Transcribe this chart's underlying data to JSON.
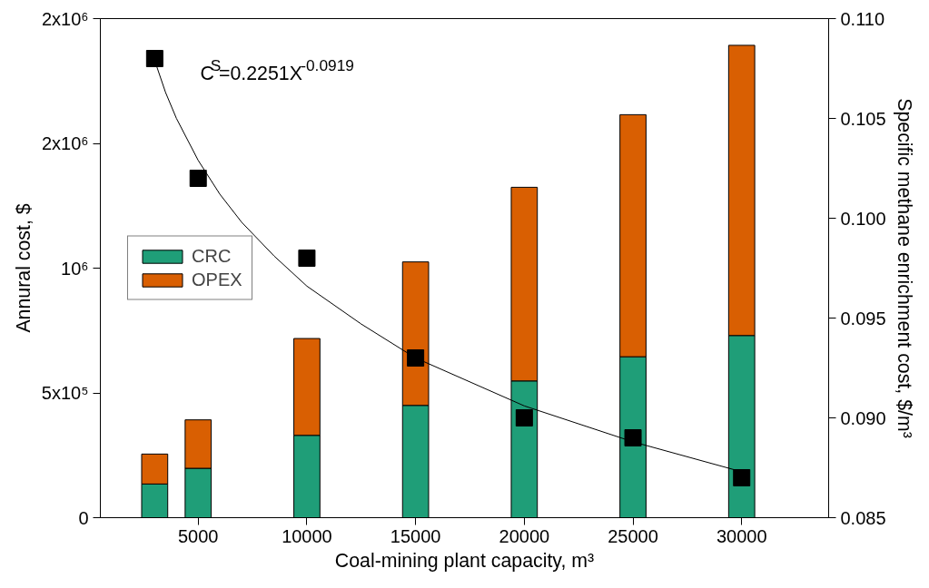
{
  "chart_data": {
    "type": "bar",
    "stacked": true,
    "xlabel": "Coal-mining plant capacity, m³",
    "ylabel": "Annural cost, $",
    "y2label": "Specific methane enrichment cost, $/m³",
    "x": [
      3000,
      5000,
      10000,
      15000,
      20000,
      25000,
      30000
    ],
    "series": [
      {
        "name": "CRC",
        "color": "#1f9e78",
        "values": [
          135000,
          198000,
          330000,
          450000,
          548000,
          645000,
          730000
        ]
      },
      {
        "name": "OPEX",
        "color": "#d95f02",
        "values": [
          120000,
          194000,
          388000,
          575000,
          776000,
          970000,
          1163000
        ]
      },
      {
        "type": "scatter",
        "axis": "y2",
        "color": "#000000",
        "marker": "square",
        "values": [
          0.108,
          0.102,
          0.098,
          0.093,
          0.09,
          0.089,
          0.087
        ]
      },
      {
        "type": "line",
        "axis": "y2",
        "color": "#000000",
        "x": [
          3000,
          3500,
          4000,
          5000,
          6000,
          7000,
          8500,
          10000,
          12500,
          15000,
          20000,
          25000,
          30000
        ],
        "values": [
          0.1079,
          0.1063,
          0.105,
          0.1029,
          0.1012,
          0.0998,
          0.0981,
          0.0966,
          0.0947,
          0.093,
          0.0906,
          0.0888,
          0.0873
        ]
      }
    ],
    "xlim": [
      500,
      34000
    ],
    "xticks": [
      5000,
      10000,
      15000,
      20000,
      25000,
      30000
    ],
    "ylim": [
      0,
      2000000
    ],
    "yticks": [
      {
        "value": 0,
        "label": "0"
      },
      {
        "value": 500000,
        "label": "5x10⁵"
      },
      {
        "value": 1000000,
        "label": "10⁶"
      },
      {
        "value": 1500000,
        "label": "2x10⁶"
      },
      {
        "value": 2000000,
        "label": "2x10⁶"
      }
    ],
    "y2lim": [
      0.085,
      0.11
    ],
    "y2ticks": [
      {
        "value": 0.085,
        "label": "0.085"
      },
      {
        "value": 0.09,
        "label": "0.090"
      },
      {
        "value": 0.095,
        "label": "0.095"
      },
      {
        "value": 0.1,
        "label": "0.100"
      },
      {
        "value": 0.105,
        "label": "0.105"
      },
      {
        "value": 0.11,
        "label": "0.110"
      }
    ],
    "annotations": [
      "C$^{S}$=0.2251X$^{-0.0919}$"
    ],
    "legend": "left",
    "grid": false
  }
}
